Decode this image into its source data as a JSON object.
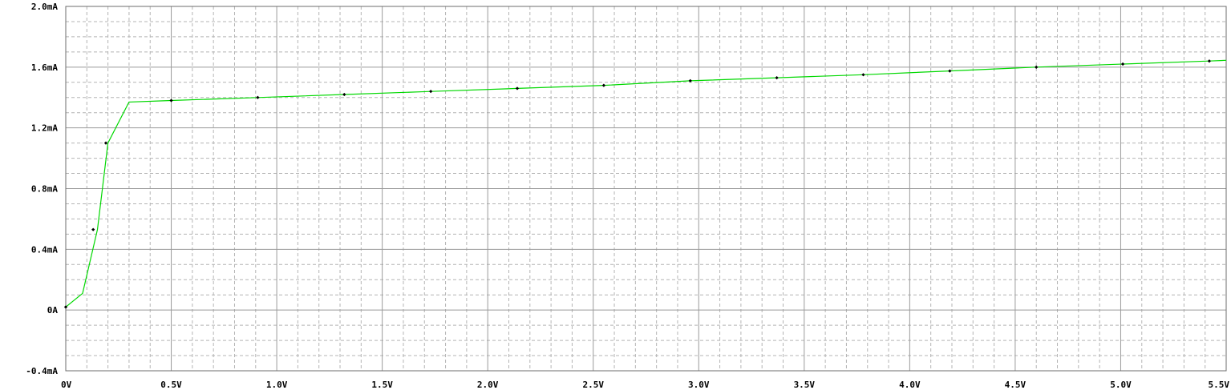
{
  "chart_data": {
    "type": "line",
    "title": "",
    "xlabel": "",
    "ylabel": "",
    "xlim": [
      0,
      5.5
    ],
    "ylim": [
      -0.4,
      2.0
    ],
    "grid": true,
    "x_ticks": [
      {
        "value": 0,
        "label": "0V"
      },
      {
        "value": 0.5,
        "label": "0.5V"
      },
      {
        "value": 1.0,
        "label": "1.0V"
      },
      {
        "value": 1.5,
        "label": "1.5V"
      },
      {
        "value": 2.0,
        "label": "2.0V"
      },
      {
        "value": 2.5,
        "label": "2.5V"
      },
      {
        "value": 3.0,
        "label": "3.0V"
      },
      {
        "value": 3.5,
        "label": "3.5V"
      },
      {
        "value": 4.0,
        "label": "4.0V"
      },
      {
        "value": 4.5,
        "label": "4.5V"
      },
      {
        "value": 5.0,
        "label": "5.0V"
      },
      {
        "value": 5.5,
        "label": "5.5V"
      }
    ],
    "y_ticks": [
      {
        "value": 2.0,
        "label": "2.0mA"
      },
      {
        "value": 1.6,
        "label": "1.6mA"
      },
      {
        "value": 1.2,
        "label": "1.2mA"
      },
      {
        "value": 0.8,
        "label": "0.8mA"
      },
      {
        "value": 0.4,
        "label": "0.4mA"
      },
      {
        "value": 0,
        "label": "0A"
      },
      {
        "value": -0.4,
        "label": "-0.4mA"
      }
    ],
    "series": [
      {
        "color": "#00d800",
        "x": [
          0,
          0.08,
          0.15,
          0.2,
          0.3,
          0.5,
          0.91,
          1.32,
          1.73,
          2.14,
          2.55,
          2.96,
          3.37,
          3.78,
          4.19,
          4.6,
          5.01,
          5.42,
          5.5
        ],
        "y": [
          0.02,
          0.11,
          0.53,
          1.1,
          1.37,
          1.38,
          1.4,
          1.42,
          1.44,
          1.46,
          1.48,
          1.51,
          1.53,
          1.55,
          1.575,
          1.6,
          1.62,
          1.64,
          1.645
        ]
      }
    ],
    "markers": {
      "color": "#000000",
      "x": [
        0,
        0.13,
        0.19,
        0.5,
        0.91,
        1.32,
        1.73,
        2.14,
        2.55,
        2.96,
        3.37,
        3.78,
        4.19,
        4.6,
        5.01,
        5.42
      ],
      "y": [
        0.02,
        0.53,
        1.1,
        1.38,
        1.4,
        1.42,
        1.44,
        1.46,
        1.48,
        1.51,
        1.53,
        1.55,
        1.575,
        1.6,
        1.62,
        1.64
      ]
    }
  }
}
